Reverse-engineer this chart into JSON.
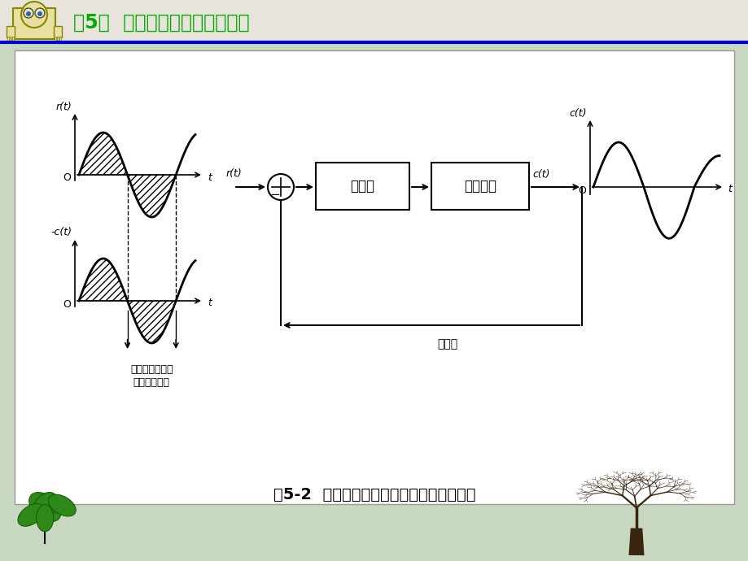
{
  "title_text": "第5章  自动控制系统的性能分析",
  "title_color": "#00aa00",
  "header_line_color": "#0000cc",
  "bg_color": "#c8d8c0",
  "caption": "图5-2  造成自动控制系统不稳定的物理原因",
  "block1_label": "调节器",
  "block2_label": "调节对象",
  "feedback_label": "负反馈",
  "annotation_line1": "反馈量与输入量",
  "annotation_line2": "极性相同部分",
  "top_ylabel": "r(t)",
  "bot_ylabel": "-c(t)",
  "out_ylabel": "c(t)",
  "t_label": "t",
  "O_label": "O",
  "rt_in": "r(t)",
  "ct_out": "c(t)",
  "minus": "−"
}
